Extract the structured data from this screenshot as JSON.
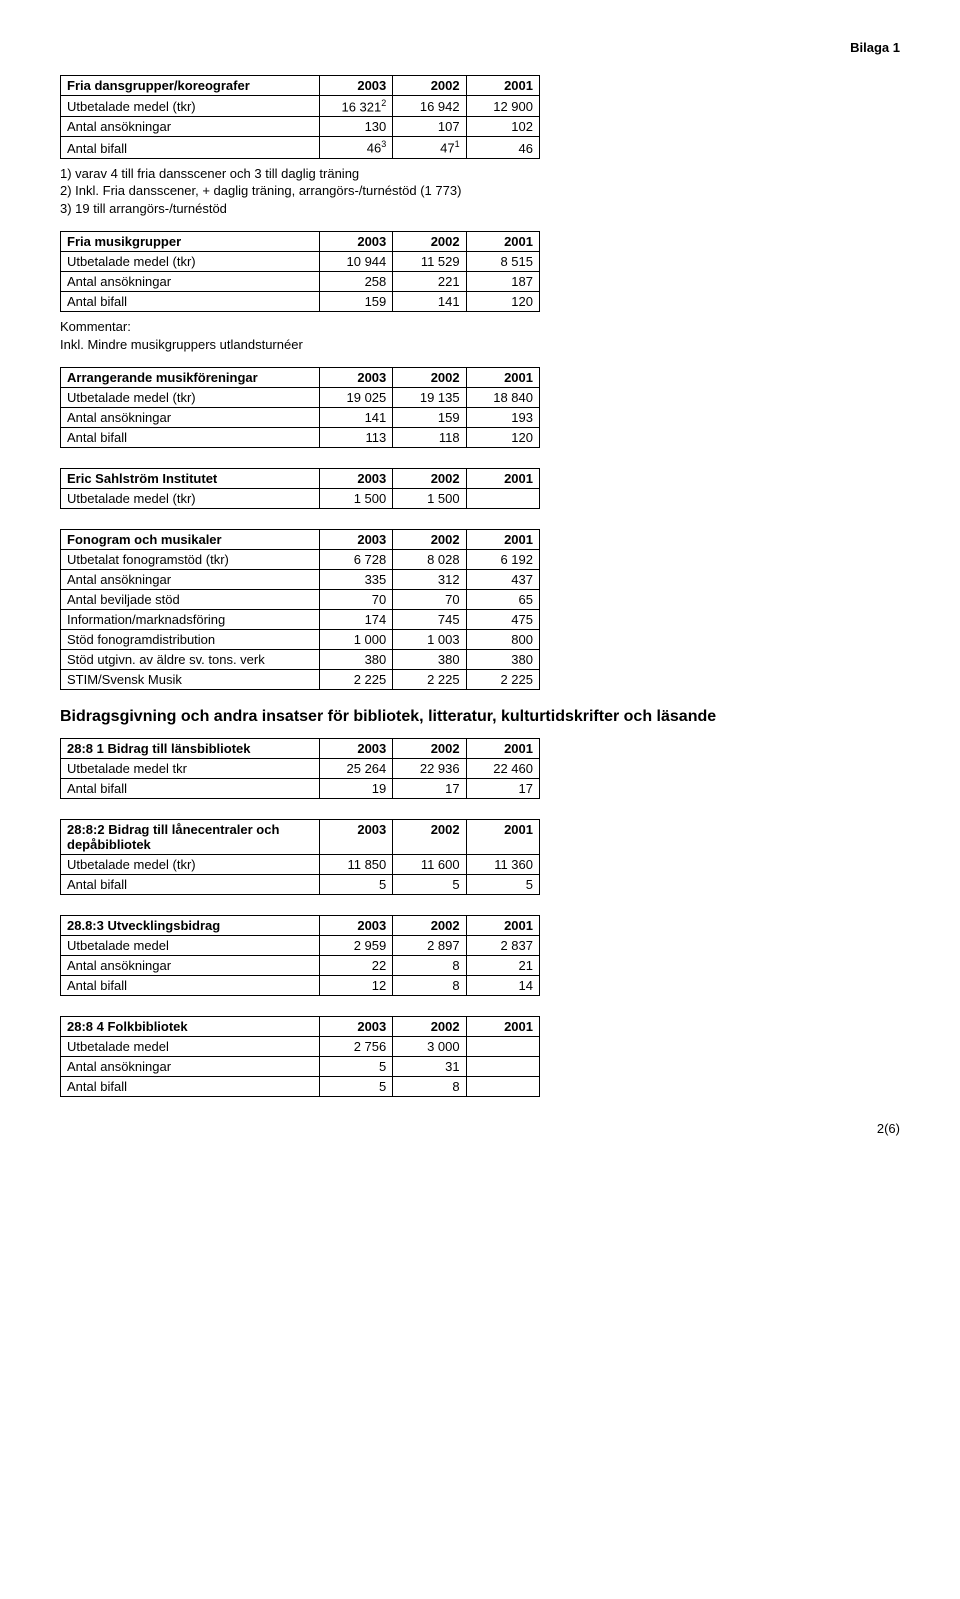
{
  "header_right": "Bilaga 1",
  "footer": "2(6)",
  "table1": {
    "title": "Fria dansgrupper/koreografer",
    "years": [
      "2003",
      "2002",
      "2001"
    ],
    "rows": [
      {
        "label": "Utbetalade medel (tkr)",
        "vals": [
          "16 321",
          "16 942",
          "12 900"
        ],
        "sup_after_first": "2"
      },
      {
        "label": "Antal ansökningar",
        "vals": [
          "130",
          "107",
          "102"
        ]
      },
      {
        "label": "Antal bifall",
        "vals": [
          "46",
          "47",
          "46"
        ],
        "sup_after_first": "3",
        "sup_after_second": "1"
      }
    ]
  },
  "note1_lines": [
    "1) varav 4 till fria dansscener och 3 till daglig träning",
    "2) Inkl. Fria dansscener, + daglig träning, arrangörs-/turnéstöd (1 773)",
    "3) 19 till arrangörs-/turnéstöd"
  ],
  "table2": {
    "title": "Fria musikgrupper",
    "years": [
      "2003",
      "2002",
      "2001"
    ],
    "rows": [
      {
        "label": "Utbetalade medel (tkr)",
        "vals": [
          "10 944",
          "11 529",
          "8 515"
        ]
      },
      {
        "label": "Antal ansökningar",
        "vals": [
          "258",
          "221",
          "187"
        ]
      },
      {
        "label": "Antal bifall",
        "vals": [
          "159",
          "141",
          "120"
        ]
      }
    ]
  },
  "note2_lines": [
    "Kommentar:",
    "Inkl. Mindre musikgruppers utlandsturnéer"
  ],
  "table3": {
    "title": "Arrangerande musikföreningar",
    "years": [
      "2003",
      "2002",
      "2001"
    ],
    "rows": [
      {
        "label": "Utbetalade medel (tkr)",
        "vals": [
          "19 025",
          "19 135",
          "18 840"
        ]
      },
      {
        "label": "Antal ansökningar",
        "vals": [
          "141",
          "159",
          "193"
        ]
      },
      {
        "label": "Antal bifall",
        "vals": [
          "113",
          "118",
          "120"
        ]
      }
    ]
  },
  "table4": {
    "title": "Eric Sahlström Institutet",
    "years": [
      "2003",
      "2002",
      "2001"
    ],
    "rows": [
      {
        "label": "Utbetalade medel (tkr)",
        "vals": [
          "1 500",
          "1 500",
          ""
        ]
      }
    ]
  },
  "table5": {
    "title": "Fonogram och musikaler",
    "years": [
      "2003",
      "2002",
      "2001"
    ],
    "rows": [
      {
        "label": "Utbetalat fonogramstöd (tkr)",
        "vals": [
          "6 728",
          "8 028",
          "6 192"
        ]
      },
      {
        "label": "Antal ansökningar",
        "vals": [
          "335",
          "312",
          "437"
        ]
      },
      {
        "label": "Antal beviljade stöd",
        "vals": [
          "70",
          "70",
          "65"
        ]
      },
      {
        "label": "Information/marknadsföring",
        "vals": [
          "174",
          "745",
          "475"
        ]
      },
      {
        "label": "Stöd fonogramdistribution",
        "vals": [
          "1 000",
          "1 003",
          "800"
        ]
      },
      {
        "label": "Stöd utgivn. av äldre sv. tons. verk",
        "vals": [
          "380",
          "380",
          "380"
        ]
      },
      {
        "label": "STIM/Svensk Musik",
        "vals": [
          "2 225",
          "2 225",
          "2 225"
        ]
      }
    ]
  },
  "section_heading": "Bidragsgivning och andra insatser för bibliotek, litteratur, kulturtidskrifter och läsande",
  "table6": {
    "title": "28:8 1 Bidrag till länsbibliotek",
    "years": [
      "2003",
      "2002",
      "2001"
    ],
    "rows": [
      {
        "label": "Utbetalade medel tkr",
        "vals": [
          "25 264",
          "22 936",
          "22 460"
        ]
      },
      {
        "label": "Antal bifall",
        "vals": [
          "19",
          "17",
          "17"
        ]
      }
    ]
  },
  "table7": {
    "title": "28:8:2 Bidrag till lånecentraler och depåbibliotek",
    "years": [
      "2003",
      "2002",
      "2001"
    ],
    "rows": [
      {
        "label": "Utbetalade medel (tkr)",
        "vals": [
          "11 850",
          "11 600",
          "11 360"
        ]
      },
      {
        "label": "Antal bifall",
        "vals": [
          "5",
          "5",
          "5"
        ]
      }
    ]
  },
  "table8": {
    "title": "28.8:3 Utvecklingsbidrag",
    "years": [
      "2003",
      "2002",
      "2001"
    ],
    "rows": [
      {
        "label": "Utbetalade medel",
        "vals": [
          "2 959",
          "2 897",
          "2 837"
        ]
      },
      {
        "label": "Antal ansökningar",
        "vals": [
          "22",
          "8",
          "21"
        ]
      },
      {
        "label": "Antal bifall",
        "vals": [
          "12",
          "8",
          "14"
        ]
      }
    ]
  },
  "table9": {
    "title": "28:8 4 Folkbibliotek",
    "years": [
      "2003",
      "2002",
      "2001"
    ],
    "rows": [
      {
        "label": "Utbetalade medel",
        "vals": [
          "2 756",
          "3 000",
          ""
        ]
      },
      {
        "label": "Antal ansökningar",
        "vals": [
          "5",
          "31",
          ""
        ]
      },
      {
        "label": "Antal bifall",
        "vals": [
          "5",
          "8",
          ""
        ]
      }
    ]
  }
}
